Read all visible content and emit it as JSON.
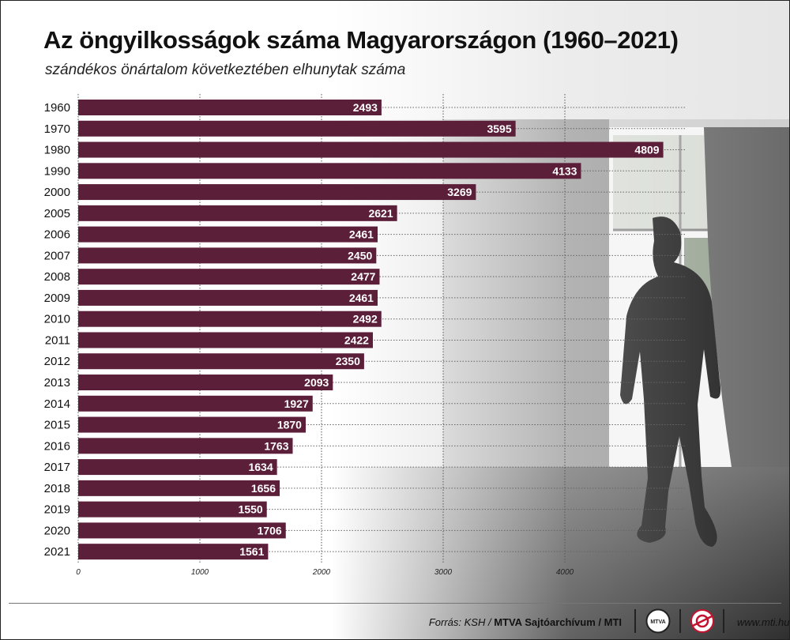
{
  "header": {
    "title": "Az öngyilkosságok száma Magyarországon (1960–2021)",
    "subtitle": "szándékos önártalom következtében elhunytak száma"
  },
  "colors": {
    "bar": "#5c1f3a",
    "grid": "#555555"
  },
  "chart_data": {
    "type": "bar",
    "orientation": "horizontal",
    "title": "Az öngyilkosságok száma Magyarországon (1960–2021)",
    "subtitle": "szándékos önártalom következtében elhunytak száma",
    "categories": [
      "1960",
      "1970",
      "1980",
      "1990",
      "2000",
      "2005",
      "2006",
      "2007",
      "2008",
      "2009",
      "2010",
      "2011",
      "2012",
      "2013",
      "2014",
      "2015",
      "2016",
      "2017",
      "2018",
      "2019",
      "2020",
      "2021"
    ],
    "values": [
      2493,
      3595,
      4809,
      4133,
      3269,
      2621,
      2461,
      2450,
      2477,
      2461,
      2492,
      2422,
      2350,
      2093,
      1927,
      1870,
      1763,
      1634,
      1656,
      1550,
      1706,
      1561
    ],
    "xlim": [
      0,
      5000
    ],
    "xticks": [
      0,
      1000,
      2000,
      3000,
      4000
    ],
    "xlabel": "",
    "ylabel": "",
    "grid": "vertical dotted",
    "data_labels": "inside bar end"
  },
  "footer": {
    "source_prefix": "Forrás: KSH / ",
    "source_brand": "MTVA Sajtóarchívum / MTI",
    "logo_mtva": "MTVA",
    "logo_mti_icon": "mti-logo-icon",
    "url": "www.mti.hu"
  }
}
